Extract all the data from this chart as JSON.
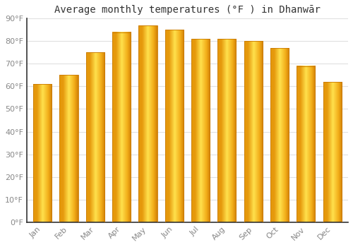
{
  "title": "Average monthly temperatures (°F ) in Dhanwār",
  "months": [
    "Jan",
    "Feb",
    "Mar",
    "Apr",
    "May",
    "Jun",
    "Jul",
    "Aug",
    "Sep",
    "Oct",
    "Nov",
    "Dec"
  ],
  "values": [
    61,
    65,
    75,
    84,
    87,
    85,
    81,
    81,
    80,
    77,
    69,
    62
  ],
  "bar_color_face": "#FDB830",
  "bar_color_left": "#F5A800",
  "bar_color_right": "#FFDD80",
  "bar_edge_color": "#C87800",
  "ylim": [
    0,
    90
  ],
  "yticks": [
    0,
    10,
    20,
    30,
    40,
    50,
    60,
    70,
    80,
    90
  ],
  "ytick_labels": [
    "0°F",
    "10°F",
    "20°F",
    "30°F",
    "40°F",
    "50°F",
    "60°F",
    "70°F",
    "80°F",
    "90°F"
  ],
  "background_color": "#FFFFFF",
  "grid_color": "#E0E0E0",
  "title_fontsize": 10,
  "tick_fontsize": 8,
  "tick_color": "#888888",
  "axis_color": "#333333"
}
